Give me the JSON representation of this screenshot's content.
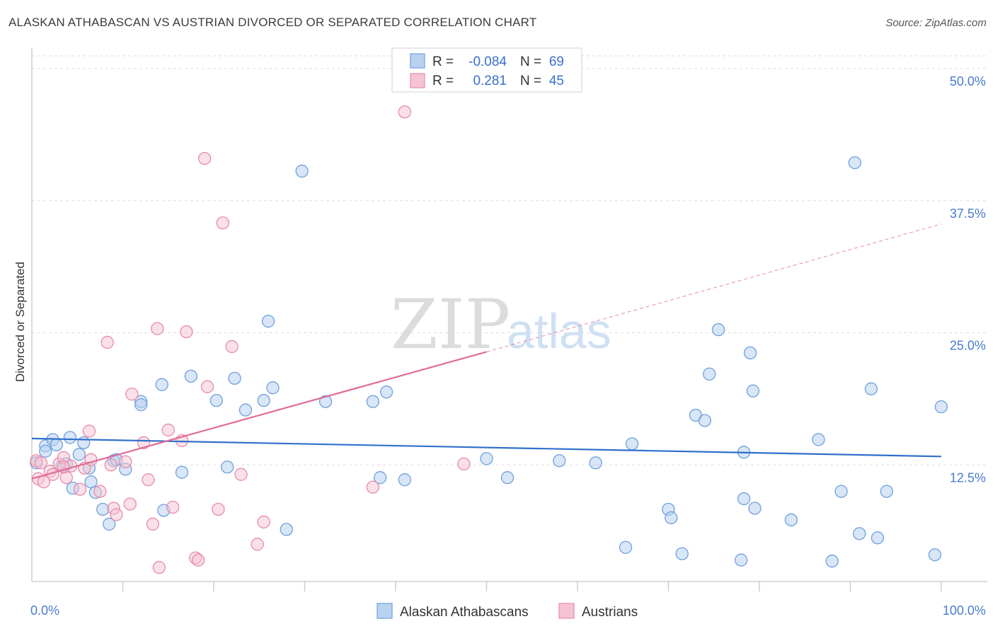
{
  "title": "ALASKAN ATHABASCAN VS AUSTRIAN DIVORCED OR SEPARATED CORRELATION CHART",
  "source": "Source: ZipAtlas.com",
  "watermark": {
    "zip": "ZIP",
    "atlas": "atlas"
  },
  "legend": {
    "rows": [
      {
        "r_label": "R =",
        "r_value": "-0.084",
        "n_label": "N =",
        "n_value": "69"
      },
      {
        "r_label": "R =",
        "r_value": "0.281",
        "n_label": "N =",
        "n_value": "45"
      }
    ]
  },
  "colors": {
    "blue": "#6fa0dc",
    "blue_fill": "#b8d2f0",
    "blue_line": "#2f6fcc",
    "pink": "#e88aa8",
    "pink_fill": "#f5c3d3",
    "pink_line": "#e06b95",
    "axis_text": "#4a7bd0",
    "grid": "#dddddd"
  },
  "chart_data": {
    "type": "scatter",
    "title": "ALASKAN ATHABASCAN VS AUSTRIAN DIVORCED OR SEPARATED CORRELATION CHART",
    "xlabel": "",
    "ylabel": "Divorced or Separated",
    "xlim": [
      0,
      100
    ],
    "ylim": [
      0,
      52
    ],
    "x_tick_labels": [
      "0.0%",
      "100.0%"
    ],
    "y_ticks": [
      12.5,
      25.0,
      37.5,
      50.0
    ],
    "y_tick_labels": [
      "12.5%",
      "25.0%",
      "37.5%",
      "50.0%"
    ],
    "grid": true,
    "legend_position": "top-center",
    "series": [
      {
        "name": "Alaskan Athabascans",
        "r": -0.084,
        "n": 69,
        "trend": {
          "x": [
            0,
            100
          ],
          "y": [
            15.0,
            13.3
          ]
        },
        "points": [
          [
            0.5,
            12.7
          ],
          [
            1.5,
            14.3
          ],
          [
            1.5,
            13.8
          ],
          [
            2.3,
            14.9
          ],
          [
            2.7,
            14.4
          ],
          [
            3.3,
            12.4
          ],
          [
            3.8,
            12.6
          ],
          [
            4.2,
            15.1
          ],
          [
            4.5,
            10.3
          ],
          [
            5.2,
            13.5
          ],
          [
            5.7,
            14.6
          ],
          [
            6.3,
            12.2
          ],
          [
            6.5,
            10.9
          ],
          [
            7.8,
            8.3
          ],
          [
            8.5,
            6.9
          ],
          [
            9.0,
            12.9
          ],
          [
            9.3,
            13.0
          ],
          [
            10.3,
            12.1
          ],
          [
            12.0,
            18.5
          ],
          [
            12.0,
            18.2
          ],
          [
            14.3,
            20.1
          ],
          [
            14.5,
            8.2
          ],
          [
            16.5,
            11.8
          ],
          [
            17.5,
            20.9
          ],
          [
            20.3,
            18.6
          ],
          [
            21.5,
            12.3
          ],
          [
            22.3,
            20.7
          ],
          [
            23.5,
            17.7
          ],
          [
            25.5,
            18.6
          ],
          [
            26.0,
            26.1
          ],
          [
            26.5,
            19.8
          ],
          [
            28.0,
            6.4
          ],
          [
            29.7,
            40.3
          ],
          [
            32.3,
            18.5
          ],
          [
            37.5,
            18.5
          ],
          [
            38.3,
            11.3
          ],
          [
            39.0,
            19.4
          ],
          [
            41.0,
            11.1
          ],
          [
            50.0,
            13.1
          ],
          [
            52.3,
            11.3
          ],
          [
            58.0,
            12.9
          ],
          [
            62.0,
            12.7
          ],
          [
            65.3,
            4.7
          ],
          [
            66.0,
            14.5
          ],
          [
            70.0,
            8.3
          ],
          [
            70.3,
            7.5
          ],
          [
            71.5,
            4.1
          ],
          [
            73.0,
            17.2
          ],
          [
            74.0,
            16.7
          ],
          [
            74.5,
            21.1
          ],
          [
            75.5,
            25.3
          ],
          [
            78.0,
            3.5
          ],
          [
            78.3,
            9.3
          ],
          [
            78.3,
            13.7
          ],
          [
            79.0,
            23.1
          ],
          [
            79.3,
            19.5
          ],
          [
            79.5,
            8.4
          ],
          [
            83.5,
            7.3
          ],
          [
            86.5,
            14.9
          ],
          [
            88.0,
            3.4
          ],
          [
            89.0,
            10.0
          ],
          [
            90.5,
            41.1
          ],
          [
            91.0,
            6.0
          ],
          [
            92.3,
            19.7
          ],
          [
            93.0,
            5.6
          ],
          [
            94.0,
            10.0
          ],
          [
            99.3,
            4.0
          ],
          [
            100.0,
            18.0
          ],
          [
            7.0,
            9.9
          ]
        ]
      },
      {
        "name": "Austrians",
        "r": 0.281,
        "n": 45,
        "trend": {
          "x": [
            0,
            50
          ],
          "y": [
            11.2,
            23.2
          ]
        },
        "trend_dashed": {
          "x": [
            50,
            100
          ],
          "y": [
            23.2,
            35.3
          ]
        },
        "points": [
          [
            0.5,
            12.9
          ],
          [
            0.7,
            11.2
          ],
          [
            1.0,
            12.7
          ],
          [
            1.3,
            10.9
          ],
          [
            2.0,
            11.9
          ],
          [
            2.3,
            11.6
          ],
          [
            3.0,
            12.6
          ],
          [
            3.5,
            13.2
          ],
          [
            3.8,
            11.3
          ],
          [
            4.3,
            12.4
          ],
          [
            5.3,
            10.2
          ],
          [
            5.8,
            12.2
          ],
          [
            6.3,
            15.7
          ],
          [
            6.5,
            13.0
          ],
          [
            7.5,
            10.0
          ],
          [
            8.3,
            24.1
          ],
          [
            8.7,
            12.5
          ],
          [
            9.0,
            8.4
          ],
          [
            9.3,
            7.8
          ],
          [
            10.3,
            12.8
          ],
          [
            10.8,
            8.8
          ],
          [
            11.0,
            19.2
          ],
          [
            12.3,
            14.6
          ],
          [
            12.8,
            11.1
          ],
          [
            13.3,
            6.9
          ],
          [
            13.8,
            25.4
          ],
          [
            14.0,
            2.8
          ],
          [
            15.0,
            15.8
          ],
          [
            15.5,
            8.5
          ],
          [
            16.5,
            14.8
          ],
          [
            17.0,
            25.1
          ],
          [
            18.0,
            3.7
          ],
          [
            18.3,
            3.5
          ],
          [
            19.0,
            41.5
          ],
          [
            19.3,
            19.9
          ],
          [
            20.5,
            8.3
          ],
          [
            21.0,
            35.4
          ],
          [
            22.0,
            23.7
          ],
          [
            23.0,
            11.6
          ],
          [
            24.8,
            5.0
          ],
          [
            25.5,
            7.1
          ],
          [
            37.5,
            10.4
          ],
          [
            41.0,
            45.9
          ],
          [
            47.5,
            12.6
          ],
          [
            3.5,
            12.3
          ]
        ]
      }
    ]
  },
  "bottom_legend": [
    "Alaskan Athabascans",
    "Austrians"
  ]
}
